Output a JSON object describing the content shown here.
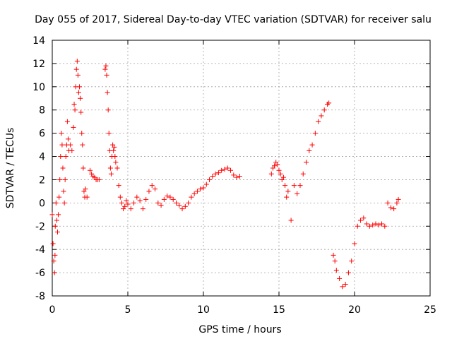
{
  "chart_data": {
    "type": "scatter",
    "title": "Day 055 of 2017, Sidereal Day-to-day VTEC variation (SDTVAR) for receiver salu",
    "xlabel": "GPS time / hours",
    "ylabel": "SDTVAR / TECUs",
    "xlim": [
      0,
      25
    ],
    "ylim": [
      -8,
      14
    ],
    "xticks": [
      0,
      5,
      10,
      15,
      20,
      25
    ],
    "yticks": [
      -8,
      -6,
      -4,
      -2,
      0,
      2,
      4,
      6,
      8,
      10,
      12,
      14
    ],
    "grid": true,
    "marker": "+",
    "color": "#ff0000",
    "series": [
      {
        "name": "SDTVAR",
        "points": [
          [
            0.0,
            -1.0
          ],
          [
            0.05,
            -3.5
          ],
          [
            0.1,
            -5.0
          ],
          [
            0.15,
            -6.0
          ],
          [
            0.18,
            -4.5
          ],
          [
            0.2,
            -2.0
          ],
          [
            0.25,
            0.0
          ],
          [
            0.3,
            -1.5
          ],
          [
            0.35,
            -2.5
          ],
          [
            0.4,
            -1.0
          ],
          [
            0.45,
            0.5
          ],
          [
            0.5,
            2.0
          ],
          [
            0.55,
            4.0
          ],
          [
            0.6,
            6.0
          ],
          [
            0.65,
            5.0
          ],
          [
            0.7,
            3.0
          ],
          [
            0.75,
            1.0
          ],
          [
            0.8,
            0.0
          ],
          [
            0.85,
            2.0
          ],
          [
            0.9,
            4.0
          ],
          [
            0.95,
            5.0
          ],
          [
            1.0,
            7.0
          ],
          [
            1.05,
            5.5
          ],
          [
            1.1,
            4.5
          ],
          [
            1.2,
            5.0
          ],
          [
            1.3,
            4.5
          ],
          [
            1.4,
            6.5
          ],
          [
            1.45,
            8.5
          ],
          [
            1.5,
            8.0
          ],
          [
            1.55,
            10.0
          ],
          [
            1.6,
            11.5
          ],
          [
            1.65,
            12.2
          ],
          [
            1.7,
            11.0
          ],
          [
            1.75,
            9.5
          ],
          [
            1.8,
            10.0
          ],
          [
            1.85,
            9.0
          ],
          [
            1.9,
            7.8
          ],
          [
            1.95,
            6.0
          ],
          [
            2.0,
            5.0
          ],
          [
            2.05,
            3.0
          ],
          [
            2.1,
            1.0
          ],
          [
            2.15,
            0.5
          ],
          [
            2.2,
            1.2
          ],
          [
            2.3,
            0.5
          ],
          [
            2.5,
            2.8
          ],
          [
            2.6,
            2.5
          ],
          [
            2.7,
            2.3
          ],
          [
            2.8,
            2.2
          ],
          [
            2.9,
            2.0
          ],
          [
            3.0,
            2.0
          ],
          [
            3.1,
            2.0
          ],
          [
            3.5,
            11.5
          ],
          [
            3.55,
            11.8
          ],
          [
            3.6,
            11.0
          ],
          [
            3.65,
            9.5
          ],
          [
            3.7,
            8.0
          ],
          [
            3.75,
            6.0
          ],
          [
            3.8,
            4.5
          ],
          [
            3.85,
            3.0
          ],
          [
            3.9,
            2.5
          ],
          [
            3.95,
            4.0
          ],
          [
            4.0,
            5.0
          ],
          [
            4.05,
            4.5
          ],
          [
            4.1,
            4.8
          ],
          [
            4.15,
            4.0
          ],
          [
            4.2,
            3.5
          ],
          [
            4.3,
            3.0
          ],
          [
            4.4,
            1.5
          ],
          [
            4.5,
            0.5
          ],
          [
            4.6,
            0.0
          ],
          [
            4.7,
            -0.5
          ],
          [
            4.8,
            -0.3
          ],
          [
            4.9,
            0.2
          ],
          [
            5.0,
            -0.1
          ],
          [
            5.2,
            -0.5
          ],
          [
            5.4,
            0.0
          ],
          [
            5.6,
            0.5
          ],
          [
            5.8,
            0.2
          ],
          [
            6.0,
            -0.5
          ],
          [
            6.2,
            0.3
          ],
          [
            6.4,
            1.0
          ],
          [
            6.6,
            1.5
          ],
          [
            6.8,
            1.2
          ],
          [
            7.0,
            0.0
          ],
          [
            7.2,
            -0.2
          ],
          [
            7.4,
            0.3
          ],
          [
            7.6,
            0.6
          ],
          [
            7.8,
            0.5
          ],
          [
            8.0,
            0.3
          ],
          [
            8.2,
            0.0
          ],
          [
            8.4,
            -0.2
          ],
          [
            8.6,
            -0.5
          ],
          [
            8.8,
            -0.3
          ],
          [
            9.0,
            0.0
          ],
          [
            9.2,
            0.5
          ],
          [
            9.4,
            0.8
          ],
          [
            9.6,
            1.0
          ],
          [
            9.8,
            1.2
          ],
          [
            10.0,
            1.3
          ],
          [
            10.2,
            1.6
          ],
          [
            10.4,
            2.0
          ],
          [
            10.6,
            2.3
          ],
          [
            10.8,
            2.5
          ],
          [
            11.0,
            2.6
          ],
          [
            11.2,
            2.8
          ],
          [
            11.4,
            2.9
          ],
          [
            11.6,
            3.0
          ],
          [
            11.8,
            2.8
          ],
          [
            12.0,
            2.4
          ],
          [
            12.2,
            2.2
          ],
          [
            12.4,
            2.3
          ],
          [
            14.5,
            2.5
          ],
          [
            14.6,
            3.0
          ],
          [
            14.7,
            3.2
          ],
          [
            14.8,
            3.5
          ],
          [
            14.9,
            3.3
          ],
          [
            15.0,
            2.8
          ],
          [
            15.1,
            2.5
          ],
          [
            15.2,
            2.0
          ],
          [
            15.3,
            2.2
          ],
          [
            15.4,
            1.5
          ],
          [
            15.5,
            0.5
          ],
          [
            15.6,
            1.0
          ],
          [
            15.8,
            -1.5
          ],
          [
            16.0,
            1.5
          ],
          [
            16.2,
            0.8
          ],
          [
            16.4,
            1.5
          ],
          [
            16.6,
            2.5
          ],
          [
            16.8,
            3.5
          ],
          [
            17.0,
            4.5
          ],
          [
            17.2,
            5.0
          ],
          [
            17.4,
            6.0
          ],
          [
            17.6,
            7.0
          ],
          [
            17.8,
            7.5
          ],
          [
            18.0,
            8.0
          ],
          [
            18.2,
            8.5
          ],
          [
            18.3,
            8.6
          ],
          [
            18.6,
            -4.5
          ],
          [
            18.7,
            -5.0
          ],
          [
            18.8,
            -5.8
          ],
          [
            19.0,
            -6.5
          ],
          [
            19.2,
            -7.2
          ],
          [
            19.4,
            -7.0
          ],
          [
            19.6,
            -6.0
          ],
          [
            19.8,
            -5.0
          ],
          [
            20.0,
            -3.5
          ],
          [
            20.2,
            -2.0
          ],
          [
            20.4,
            -1.5
          ],
          [
            20.6,
            -1.3
          ],
          [
            20.8,
            -1.8
          ],
          [
            21.0,
            -2.0
          ],
          [
            21.2,
            -1.9
          ],
          [
            21.4,
            -1.8
          ],
          [
            21.6,
            -1.9
          ],
          [
            21.8,
            -1.8
          ],
          [
            22.0,
            -2.0
          ],
          [
            22.2,
            0.0
          ],
          [
            22.4,
            -0.4
          ],
          [
            22.6,
            -0.5
          ],
          [
            22.8,
            0.0
          ],
          [
            22.9,
            0.3
          ]
        ]
      }
    ]
  }
}
